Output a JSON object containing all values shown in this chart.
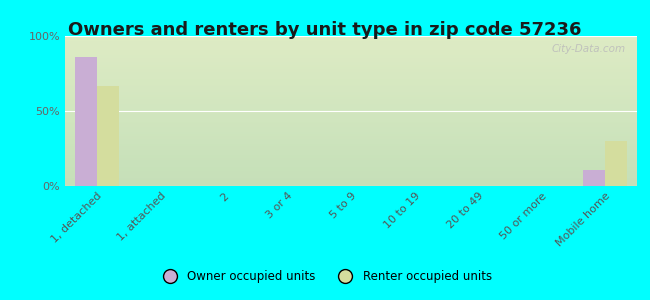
{
  "title": "Owners and renters by unit type in zip code 57236",
  "categories": [
    "1, detached",
    "1, attached",
    "2",
    "3 or 4",
    "5 to 9",
    "10 to 19",
    "20 to 49",
    "50 or more",
    "Mobile home"
  ],
  "owner_values": [
    86,
    0,
    0,
    0,
    0,
    0,
    0,
    0,
    11
  ],
  "renter_values": [
    67,
    0,
    0,
    0,
    0,
    0,
    0,
    0,
    30
  ],
  "owner_color": "#c9aed4",
  "renter_color": "#d4dd9e",
  "background_color": "#00ffff",
  "plot_bg_gradient_top": "#e8f5e0",
  "plot_bg_gradient_bottom": "#f5f8e8",
  "ylabel_ticks": [
    "0%",
    "50%",
    "100%"
  ],
  "ytick_vals": [
    0,
    50,
    100
  ],
  "ylim": [
    0,
    100
  ],
  "bar_width": 0.35,
  "legend_owner": "Owner occupied units",
  "legend_renter": "Renter occupied units",
  "title_fontsize": 13,
  "tick_fontsize": 8,
  "watermark": "City-Data.com"
}
